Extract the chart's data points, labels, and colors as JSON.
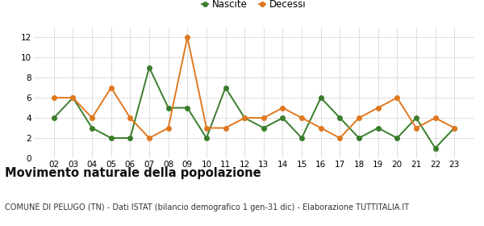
{
  "years": [
    "02",
    "03",
    "04",
    "05",
    "06",
    "07",
    "08",
    "09",
    "10",
    "11",
    "12",
    "13",
    "14",
    "15",
    "16",
    "17",
    "18",
    "19",
    "20",
    "21",
    "22",
    "23"
  ],
  "nascite": [
    4,
    6,
    3,
    2,
    2,
    9,
    5,
    5,
    2,
    7,
    4,
    3,
    4,
    2,
    6,
    4,
    2,
    3,
    2,
    4,
    1,
    3
  ],
  "decessi": [
    6,
    6,
    4,
    7,
    4,
    2,
    3,
    12,
    3,
    3,
    4,
    4,
    5,
    4,
    3,
    2,
    4,
    5,
    6,
    3,
    4,
    3
  ],
  "nascite_color": "#3a7d2c",
  "decessi_color": "#e07820",
  "nascite_label": "Nascite",
  "decessi_label": "Decessi",
  "ylim": [
    0,
    13
  ],
  "yticks": [
    0,
    2,
    4,
    6,
    8,
    10,
    12
  ],
  "title": "Movimento naturale della popolazione",
  "subtitle": "COMUNE DI PELUGO (TN) - Dati ISTAT (bilancio demografico 1 gen-31 dic) - Elaborazione TUTTITALIA.IT",
  "title_fontsize": 10.5,
  "subtitle_fontsize": 7.0,
  "bg_color": "#ffffff",
  "grid_color": "#dddddd",
  "marker_size": 4,
  "line_width": 1.4
}
